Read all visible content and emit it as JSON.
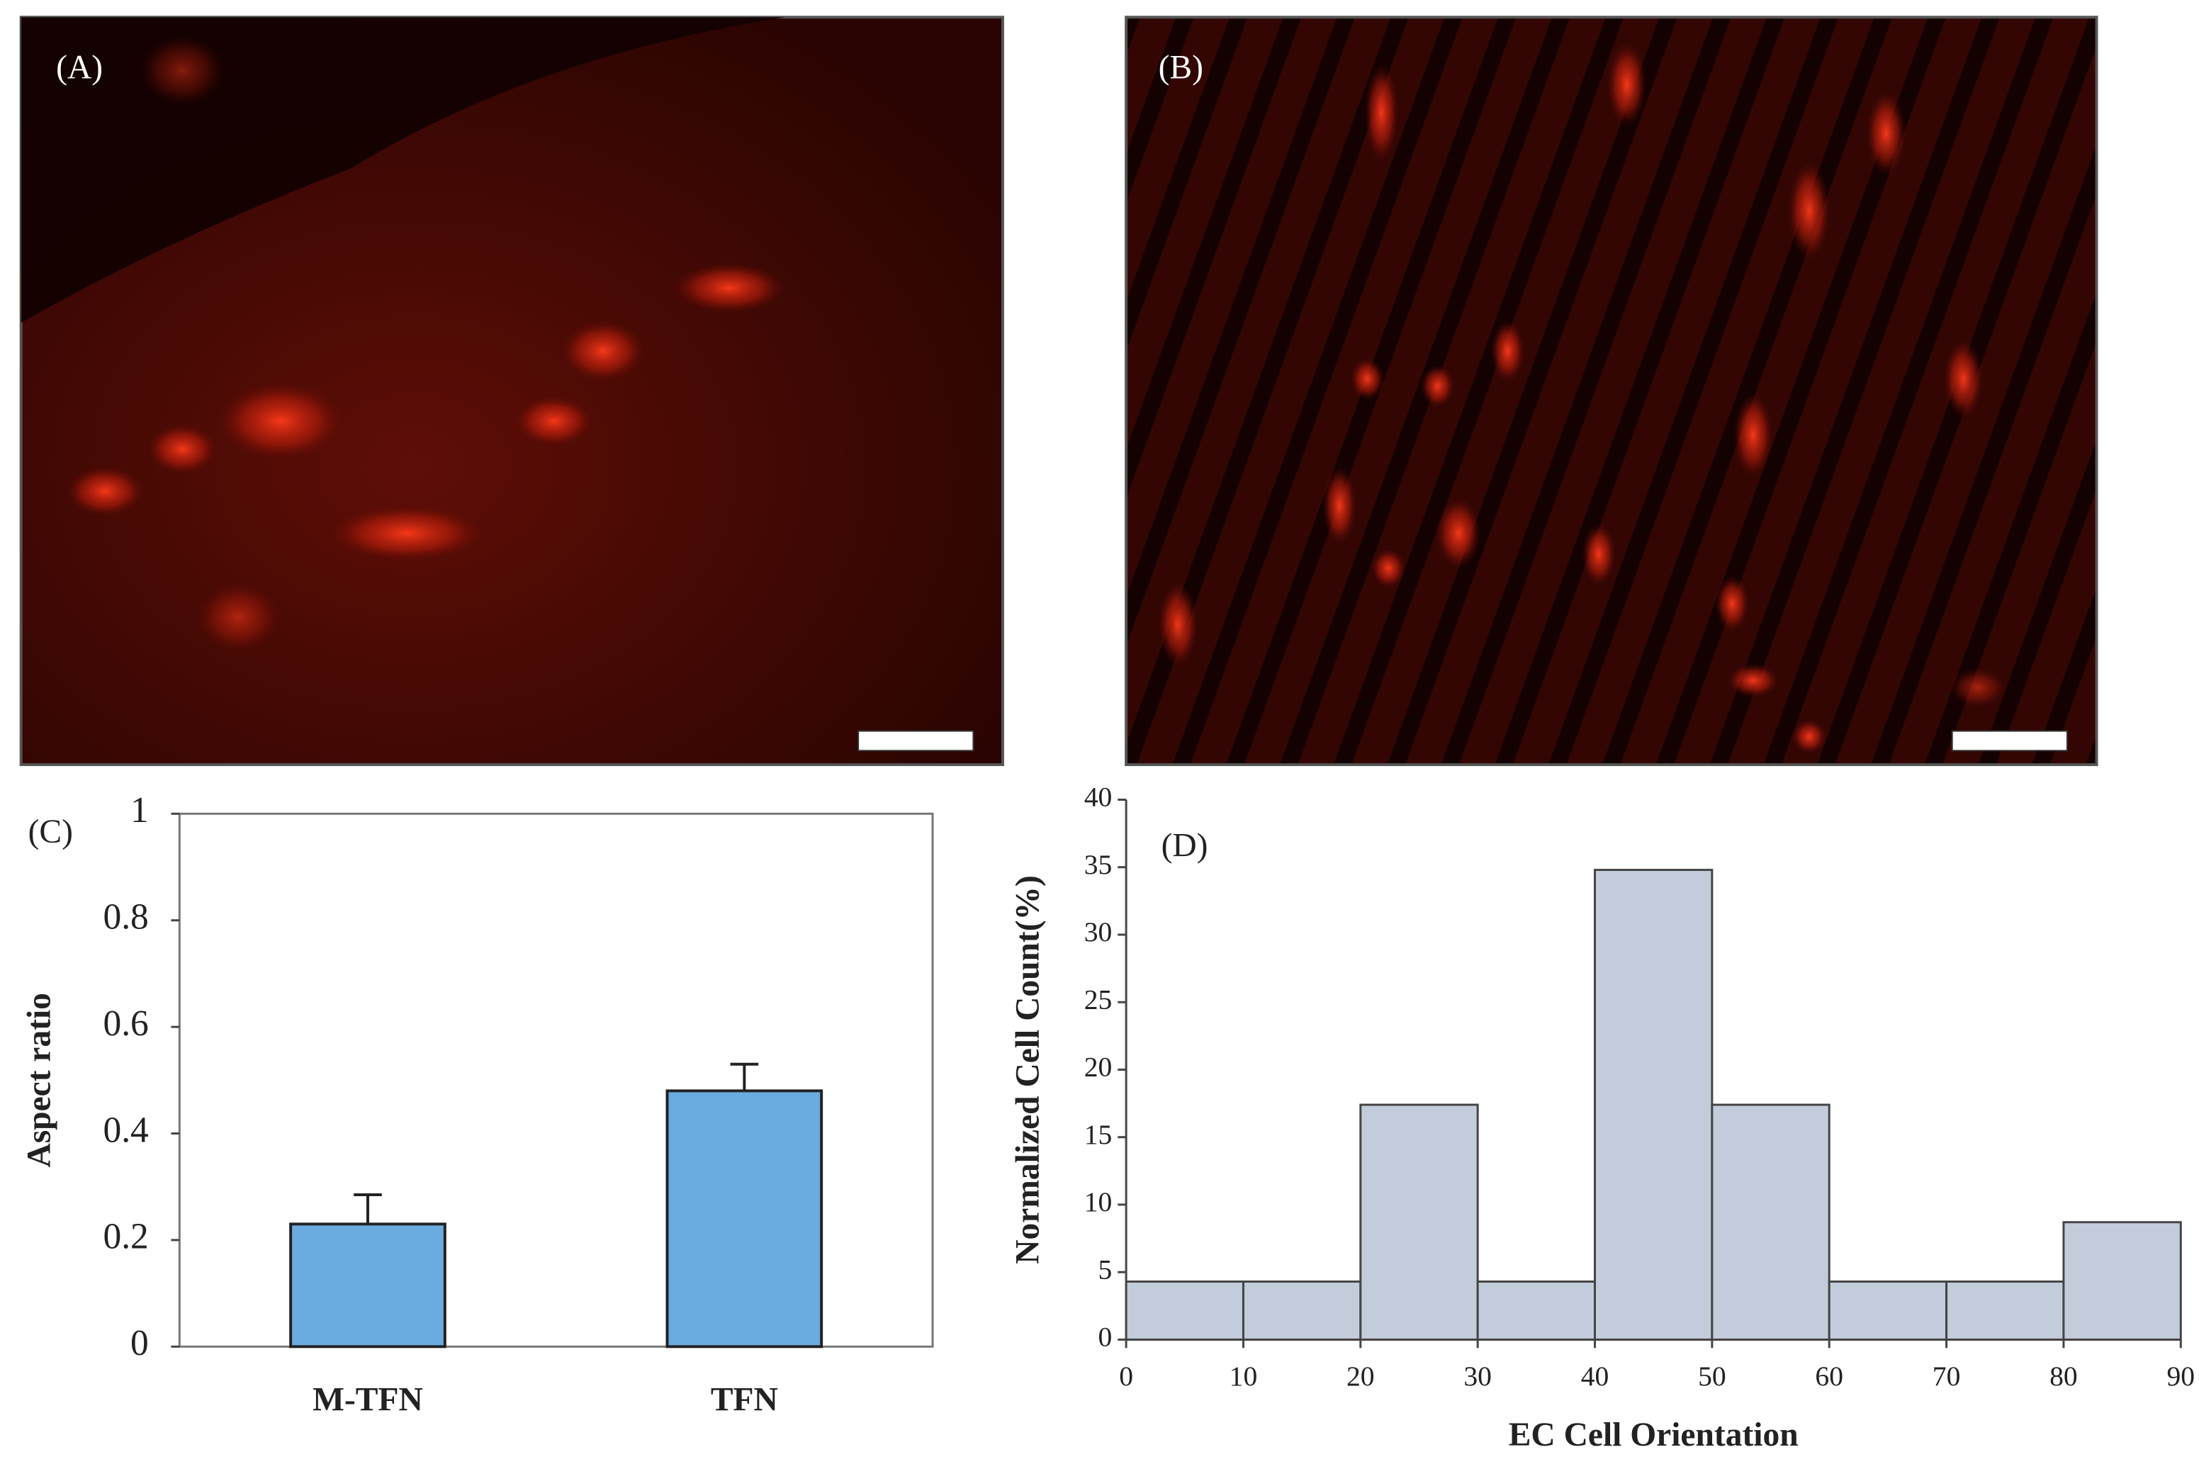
{
  "images": [
    {
      "label": "(A)"
    },
    {
      "label": "(B)"
    }
  ],
  "chart_data": [
    {
      "type": "bar",
      "panel_label": "(C)",
      "ylabel": "Aspect ratio",
      "categories": [
        "M-TFN",
        "TFN"
      ],
      "values": [
        0.23,
        0.48
      ],
      "errors": [
        0.055,
        0.05
      ],
      "color": "#6aabe0",
      "ylim": [
        0,
        1
      ],
      "yticks": [
        0,
        0.2,
        0.4,
        0.6,
        0.8,
        1
      ]
    },
    {
      "type": "histogram",
      "panel_label": "(D)",
      "xlabel": "EC Cell Orientation",
      "ylabel": "Normalized Cell Count(%)",
      "bins": [
        0,
        10,
        20,
        30,
        40,
        50,
        60,
        70,
        80,
        90
      ],
      "values": [
        4.3,
        4.3,
        17.4,
        4.3,
        34.8,
        17.4,
        4.3,
        4.3,
        8.7
      ],
      "color": "#c3ccda",
      "xlim": [
        0,
        90
      ],
      "xticks": [
        0,
        10,
        20,
        30,
        40,
        50,
        60,
        70,
        80,
        90
      ],
      "ylim": [
        0,
        40
      ],
      "yticks": [
        0,
        5,
        10,
        15,
        20,
        25,
        30,
        35,
        40
      ]
    }
  ]
}
